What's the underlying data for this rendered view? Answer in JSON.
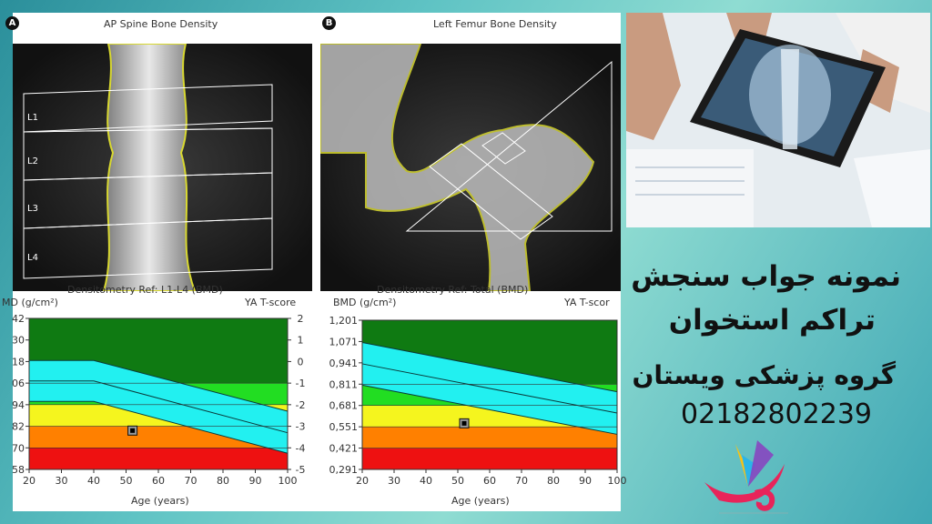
{
  "scans": {
    "spine": {
      "title": "AP Spine Bone Density",
      "badge": "A",
      "vertebra_labels": [
        "L1",
        "L2",
        "L3",
        "L4"
      ]
    },
    "femur": {
      "title": "Left Femur Bone Density",
      "badge": "B"
    }
  },
  "chart_data": [
    {
      "type": "area",
      "title": "Densitometry Ref: L1-L4 (BMD)",
      "ylabel": "MD (g/cm²)",
      "ylabel_right": "YA T-score",
      "xlabel": "Age (years)",
      "xlim": [
        20,
        100
      ],
      "x_ticks": [
        "20",
        "30",
        "40",
        "50",
        "60",
        "70",
        "80",
        "90",
        "100"
      ],
      "y_ticks_left": [
        "42",
        "30",
        "18",
        "06",
        "94",
        "82",
        "70",
        "58"
      ],
      "y_ticks_right": [
        "2",
        "1",
        "0",
        "-1",
        "-2",
        "-3",
        "-4",
        "-5"
      ],
      "y_units": "T-score",
      "ylim": [
        -5,
        2
      ],
      "bands": [
        {
          "from": -1,
          "to": 2,
          "color": "#0f7a12"
        },
        {
          "from": -2,
          "to": -1,
          "color": "#22dd22"
        },
        {
          "from": -3,
          "to": -2,
          "color": "#f5f51e"
        },
        {
          "from": -4,
          "to": -3,
          "color": "#ff8000"
        },
        {
          "from": -5,
          "to": -4,
          "color": "#ee1111"
        }
      ],
      "reference_band": {
        "color": "#22f0f0",
        "upper": [
          [
            20,
            0.05
          ],
          [
            40,
            0.05
          ],
          [
            100,
            -2.3
          ]
        ],
        "middle": [
          [
            20,
            -0.9
          ],
          [
            40,
            -0.9
          ],
          [
            100,
            -3.3
          ]
        ],
        "lower": [
          [
            20,
            -1.85
          ],
          [
            40,
            -1.85
          ],
          [
            100,
            -4.25
          ]
        ]
      },
      "patient": {
        "age": 52,
        "value": -3.2
      }
    },
    {
      "type": "area",
      "title": "Densitometry Ref: Total (BMD)",
      "ylabel": "BMD (g/cm²)",
      "ylabel_right": "YA T-scor",
      "xlabel": "Age (years)",
      "xlim": [
        20,
        100
      ],
      "x_ticks": [
        "20",
        "30",
        "40",
        "50",
        "60",
        "70",
        "80",
        "90",
        "100"
      ],
      "y_ticks_left": [
        "1,201",
        "1,071",
        "0,941",
        "0,811",
        "0,681",
        "0,551",
        "0,421",
        "0,291"
      ],
      "ylim": [
        0.291,
        1.201
      ],
      "bands": [
        {
          "from": 0.811,
          "to": 1.201,
          "color": "#0f7a12"
        },
        {
          "from": 0.681,
          "to": 0.811,
          "color": "#22dd22"
        },
        {
          "from": 0.551,
          "to": 0.681,
          "color": "#f5f51e"
        },
        {
          "from": 0.421,
          "to": 0.551,
          "color": "#ff8000"
        },
        {
          "from": 0.291,
          "to": 0.421,
          "color": "#ee1111"
        }
      ],
      "reference_band": {
        "color": "#22f0f0",
        "upper": [
          [
            20,
            1.065
          ],
          [
            100,
            0.765
          ]
        ],
        "middle": [
          [
            20,
            0.935
          ],
          [
            100,
            0.635
          ]
        ],
        "lower": [
          [
            20,
            0.805
          ],
          [
            100,
            0.505
          ]
        ]
      },
      "patient": {
        "age": 52,
        "value": 0.572
      }
    }
  ],
  "promo": {
    "line1": "نمونه جواب سنجش",
    "line2": "تراکم استخوان",
    "line3": "گروه پزشکی ویستان",
    "phone": "02182802239",
    "logo_text": "ویستان",
    "logo_subtext": "گروه پزشکی ویستان",
    "text_color": "#111111",
    "logo_color": "#e8245a"
  }
}
